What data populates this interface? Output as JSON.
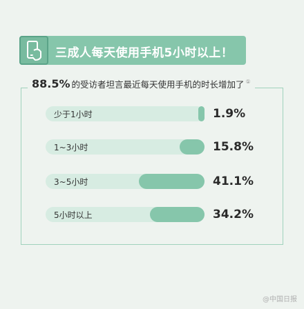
{
  "header": {
    "title": "三成人每天使用手机5小时以上！",
    "icon": "phone-icon"
  },
  "subtitle": {
    "highlight": "88.5%",
    "text": "的受访者坦言最近每天使用手机的时长增加了",
    "note": "①"
  },
  "chart_data": {
    "type": "bar",
    "orientation": "horizontal",
    "categories": [
      "少于1小时",
      "1~3小时",
      "3~5小时",
      "5小时以上"
    ],
    "values": [
      1.9,
      15.8,
      41.1,
      34.2
    ],
    "value_labels": [
      "1.9%",
      "15.8%",
      "41.1%",
      "34.2%"
    ],
    "unit": "%",
    "xlim": [
      0,
      100
    ],
    "bar_direction": "right-aligned",
    "grid": false
  },
  "colors": {
    "accent": "#86c6ab",
    "track": "#d7ece2",
    "background": "#eef3ef"
  },
  "watermark": "@中国日报"
}
